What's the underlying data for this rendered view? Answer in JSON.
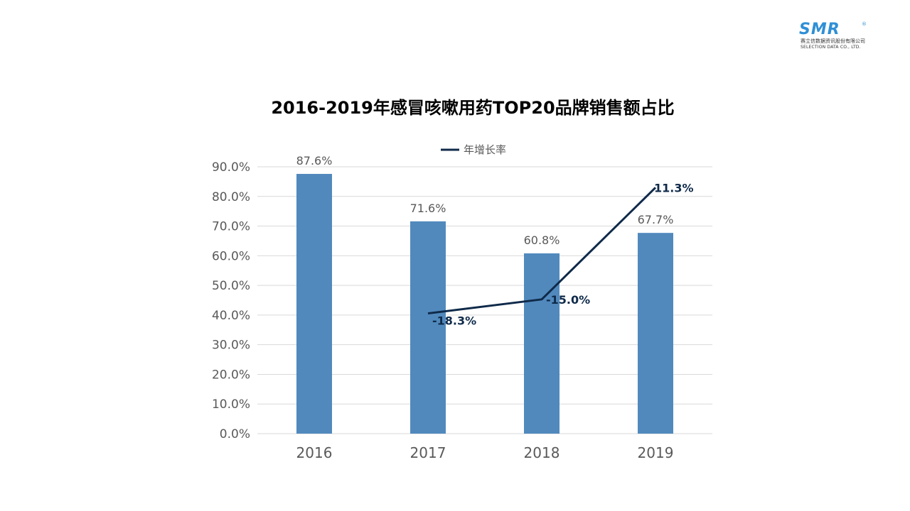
{
  "logo": {
    "mark": "SMR",
    "reg": "®",
    "company_cn": "赛立信数据资讯股份有限公司",
    "company_en": "SELECTION DATA CO., LTD."
  },
  "colors": {
    "bar": "#5189bd",
    "line": "#0f2a4a",
    "grid": "#d9d9d9",
    "axis_text": "#595959",
    "title": "#000000"
  },
  "chart_data": {
    "type": "bar",
    "title": "2016-2019年感冒咳嗽用药TOP20品牌销售额占比",
    "categories": [
      "2016",
      "2017",
      "2018",
      "2019"
    ],
    "values": [
      87.6,
      71.6,
      60.8,
      67.7
    ],
    "value_labels": [
      "87.6%",
      "71.6%",
      "60.8%",
      "67.7%"
    ],
    "ylim": [
      0,
      90
    ],
    "yticks": [
      0,
      10,
      20,
      30,
      40,
      50,
      60,
      70,
      80,
      90
    ],
    "ytick_labels": [
      "0.0%",
      "10.0%",
      "20.0%",
      "30.0%",
      "40.0%",
      "50.0%",
      "60.0%",
      "70.0%",
      "80.0%",
      "90.0%"
    ],
    "grid": true,
    "legend_position": "top",
    "line_series": {
      "name": "年增长率",
      "type": "line",
      "categories": [
        "2017",
        "2018",
        "2019"
      ],
      "values": [
        -18.3,
        -15.0,
        11.3
      ],
      "labels": [
        "-18.3%",
        "-15.0%",
        "11.3%"
      ]
    }
  }
}
